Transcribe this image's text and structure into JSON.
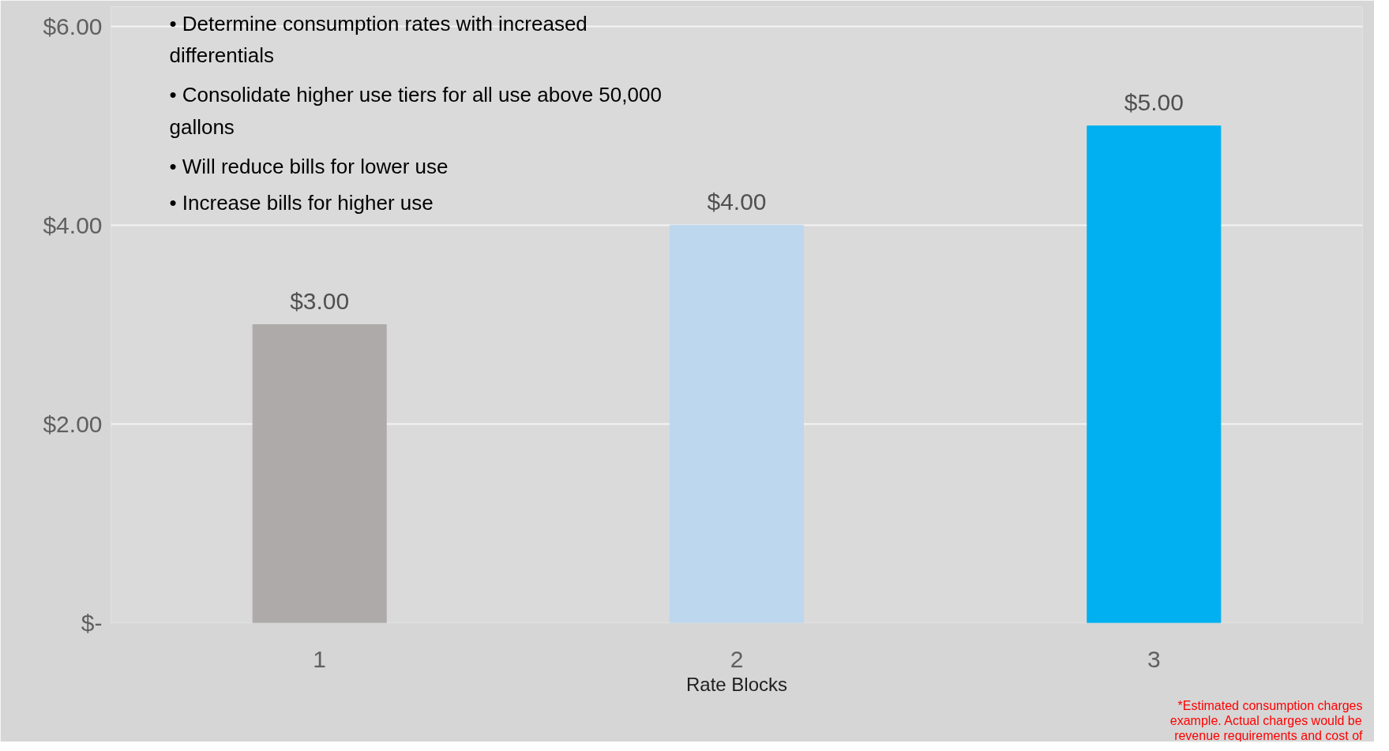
{
  "chart_data": {
    "type": "bar",
    "xlabel": "Rate Blocks",
    "categories": [
      "1",
      "2",
      "3"
    ],
    "values": [
      3,
      4,
      5
    ],
    "colors": [
      "#aeaaaa",
      "#bdd7ee",
      "#00b0f0"
    ],
    "value_labels": [
      "$3.00",
      "$4.00",
      "$5.00"
    ],
    "ylim": [
      0,
      6.2
    ],
    "yticks": [
      {
        "value": 0,
        "label": "$-"
      },
      {
        "value": 2,
        "label": "$2.00"
      },
      {
        "value": 4,
        "label": "$4.00"
      },
      {
        "value": 6,
        "label": "$6.00"
      }
    ],
    "grid": "y",
    "annotations": [
      "•  Determine consumption rates with increased\n    differentials",
      "•  Consolidate higher use tiers for all use above 50,000\n    gallons",
      "•  Will reduce bills for lower use",
      "•  Increase bills for higher use",
      "*Estimated consumption charges\nexample. Actual charges would be\nrevenue requirements and cost of"
    ]
  }
}
